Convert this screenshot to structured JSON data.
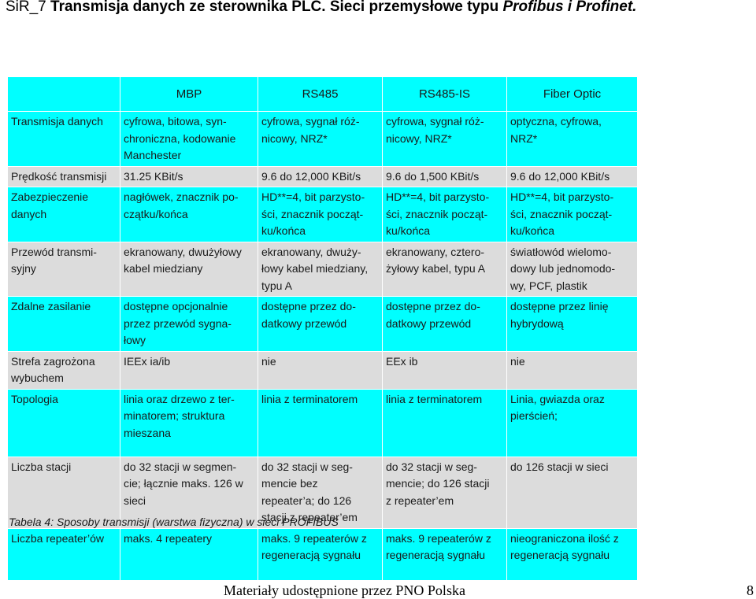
{
  "header": {
    "prefix": "SiR_7 ",
    "title_bold": "Transmisja danych ze sterownika PLC. Sieci przemysłowe typu ",
    "title_italic": "Profibus i Profinet."
  },
  "table": {
    "columns": [
      "",
      "MBP",
      "RS485",
      "RS485-IS",
      "Fiber Optic"
    ],
    "rows": [
      {
        "style": "cyan",
        "cells": [
          "Transmisja danych",
          "cyfrowa, bitowa, syn-\nchroniczna, kodowanie\nManchester",
          "cyfrowa, sygnał róż-\nnicowy, NRZ*",
          "cyfrowa, sygnał róż-\nnicowy, NRZ*",
          "optyczna, cyfrowa,\nNRZ*"
        ]
      },
      {
        "style": "gray",
        "cells": [
          "Prędkość transmisji",
          "31.25 KBit/s",
          "9.6 do 12,000 KBit/s",
          "9.6 do 1,500 KBit/s",
          "9.6 do 12,000 KBit/s"
        ]
      },
      {
        "style": "cyan",
        "cells": [
          "Zabezpieczenie\ndanych",
          "nagłówek, znacznik po-\nczątku/końca",
          "HD**=4, bit parzysto-\nści, znacznik począt-\nku/końca",
          "HD**=4, bit parzysto-\nści, znacznik począt-\nku/końca",
          "HD**=4, bit parzysto-\nści, znacznik począt-\nku/końca"
        ]
      },
      {
        "style": "gray",
        "cells": [
          "Przewód transmi-\nsyjny",
          "ekranowany, dwużyłowy\nkabel miedziany",
          "ekranowany, dwuży-\nłowy kabel miedziany,\ntypu A",
          "ekranowany, cztero-\nżyłowy kabel, typu A",
          "światłowód wielomo-\ndowy lub jednomodo-\nwy, PCF, plastik"
        ]
      },
      {
        "style": "cyan",
        "cells": [
          "Zdalne zasilanie",
          "dostępne opcjonalnie\nprzez przewód sygna-\nłowy",
          "dostępne przez do-\ndatkowy przewód",
          "dostępne przez do-\ndatkowy przewód",
          "dostępne przez linię\nhybrydową"
        ]
      },
      {
        "style": "gray",
        "cells": [
          "Strefa zagrożona\nwybuchem",
          "IEEx ia/ib",
          "nie",
          "EEx ib",
          "nie"
        ]
      },
      {
        "style": "cyan",
        "cells": [
          "Topologia",
          "linia oraz drzewo z ter-\nminatorem; struktura\nmieszana",
          "linia z terminatorem",
          "linia z terminatorem",
          "Linia, gwiazda oraz\npierścień;"
        ]
      },
      {
        "style": "gray",
        "cells": [
          "Liczba stacji",
          "do 32 stacji w segmen-\ncie; łącznie maks. 126 w\nsieci",
          "do 32 stacji w seg-\nmencie bez\nrepeater’a; do 126\nstacji z repeater’em",
          "do 32 stacji w seg-\nmencie; do 126 stacji\nz repeater’em",
          "do 126 stacji w sieci"
        ]
      },
      {
        "style": "cyan",
        "cells": [
          "Liczba repeater’ów",
          "maks. 4 repeatery",
          "maks. 9 repeaterów z\nregeneracją sygnału",
          "maks. 9 repeaterów z\nregeneracją sygnału",
          "nieograniczona ilość z\nregeneracją sygnału"
        ]
      }
    ]
  },
  "caption": "Tabela 4: Sposoby transmisji  (warstwa fizyczna) w sieci  PROFIBUS",
  "footer": {
    "text": "Materiały udostępnione przez PNO Polska",
    "page": "8"
  }
}
